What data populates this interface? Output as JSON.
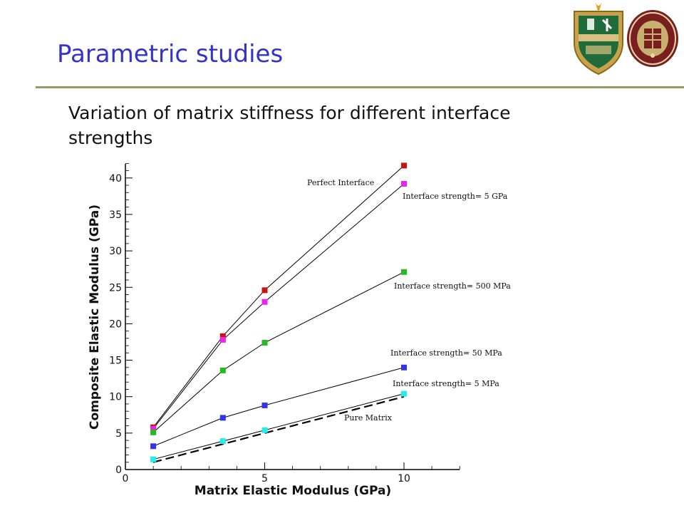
{
  "slide": {
    "title": "Parametric studies",
    "subtitle": "Variation of matrix stiffness for different interface strengths",
    "title_color": "#3333cc"
  },
  "logos": [
    "crest-logo",
    "university-seal-logo"
  ],
  "chart_data": {
    "type": "line",
    "xlabel": "Matrix Elastic Modulus (GPa)",
    "ylabel": "Composite Elastic Modulus (GPa)",
    "xlim": [
      0,
      12
    ],
    "ylim": [
      0,
      42
    ],
    "x_ticks": [
      0,
      5,
      10
    ],
    "y_ticks": [
      0,
      5,
      10,
      15,
      20,
      25,
      30,
      35,
      40
    ],
    "x_tick_labels": [
      "0",
      "5",
      "10"
    ],
    "y_tick_labels": [
      "0",
      "5",
      "10",
      "15",
      "20",
      "25",
      "30",
      "35",
      "40"
    ],
    "grid": false,
    "x": [
      1,
      3.5,
      5,
      10
    ],
    "series": [
      {
        "name": "Perfect Interface",
        "values": [
          5.8,
          18.3,
          24.6,
          41.7
        ],
        "color": "#cc1111",
        "marker": "square"
      },
      {
        "name": "Interface strength= 5 GPa",
        "values": [
          5.6,
          17.8,
          23.0,
          39.2
        ],
        "color": "#ee22ee",
        "marker": "square"
      },
      {
        "name": "Interface strength= 500 MPa",
        "values": [
          5.1,
          13.6,
          17.4,
          27.1
        ],
        "color": "#22bb22",
        "marker": "square"
      },
      {
        "name": "Interface strength= 50 MPa",
        "values": [
          3.2,
          7.1,
          8.8,
          14.0
        ],
        "color": "#3333ee",
        "marker": "square"
      },
      {
        "name": "Interface strength= 5 MPa",
        "values": [
          1.4,
          3.9,
          5.4,
          10.4
        ],
        "color": "#22eeee",
        "marker": "square"
      },
      {
        "name": "Pure Matrix",
        "values": [
          1.0,
          3.5,
          5.0,
          10.0
        ],
        "color": "#000000",
        "style": "dashed"
      }
    ]
  }
}
